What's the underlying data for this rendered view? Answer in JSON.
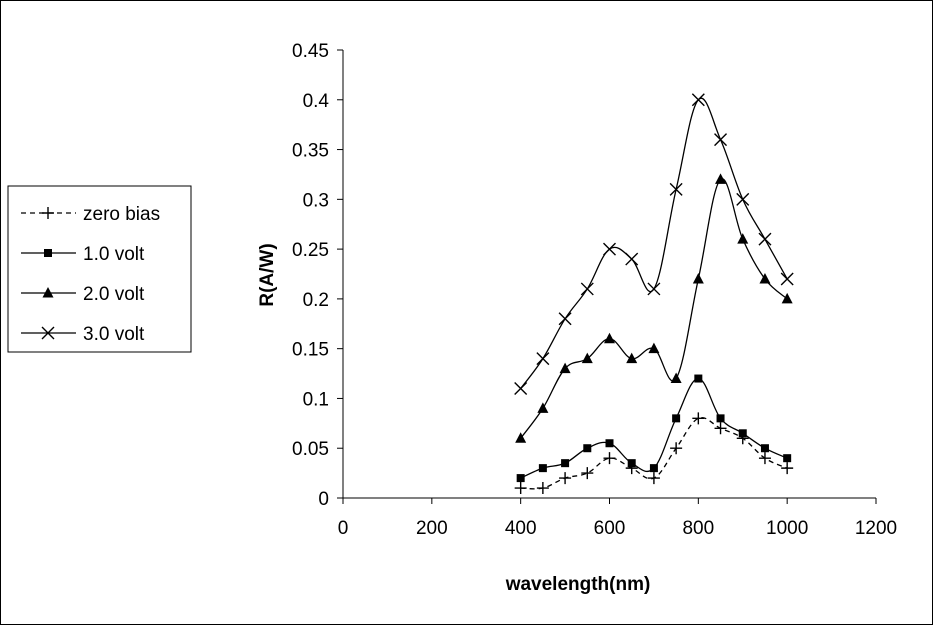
{
  "chart_data": {
    "type": "line",
    "title": "",
    "xlabel": "wavelength(nm)",
    "ylabel": "R(A/W)",
    "xlim": [
      0,
      1200
    ],
    "ylim": [
      0,
      0.45
    ],
    "xticks": [
      "0",
      "200",
      "400",
      "600",
      "800",
      "1000",
      "1200"
    ],
    "yticks": [
      "0",
      "0.05",
      "0.1",
      "0.15",
      "0.2",
      "0.25",
      "0.3",
      "0.35",
      "0.4",
      "0.45"
    ],
    "grid": false,
    "legend_position": "left",
    "x": [
      400,
      450,
      500,
      550,
      600,
      650,
      700,
      750,
      800,
      850,
      900,
      950,
      1000
    ],
    "series": [
      {
        "name": "zero bias",
        "marker": "plus",
        "line": "dashed",
        "values": [
          0.01,
          0.01,
          0.02,
          0.025,
          0.04,
          0.03,
          0.02,
          0.05,
          0.08,
          0.07,
          0.06,
          0.04,
          0.03
        ]
      },
      {
        "name": "1.0 volt",
        "marker": "square",
        "line": "solid",
        "values": [
          0.02,
          0.03,
          0.035,
          0.05,
          0.055,
          0.035,
          0.03,
          0.08,
          0.12,
          0.08,
          0.065,
          0.05,
          0.04
        ]
      },
      {
        "name": "2.0 volt",
        "marker": "triangle",
        "line": "solid",
        "values": [
          0.06,
          0.09,
          0.13,
          0.14,
          0.16,
          0.14,
          0.15,
          0.12,
          0.22,
          0.32,
          0.26,
          0.22,
          0.2
        ]
      },
      {
        "name": "3.0 volt",
        "marker": "x",
        "line": "solid",
        "values": [
          0.11,
          0.14,
          0.18,
          0.21,
          0.25,
          0.24,
          0.21,
          0.31,
          0.4,
          0.36,
          0.3,
          0.26,
          0.22
        ]
      }
    ]
  }
}
